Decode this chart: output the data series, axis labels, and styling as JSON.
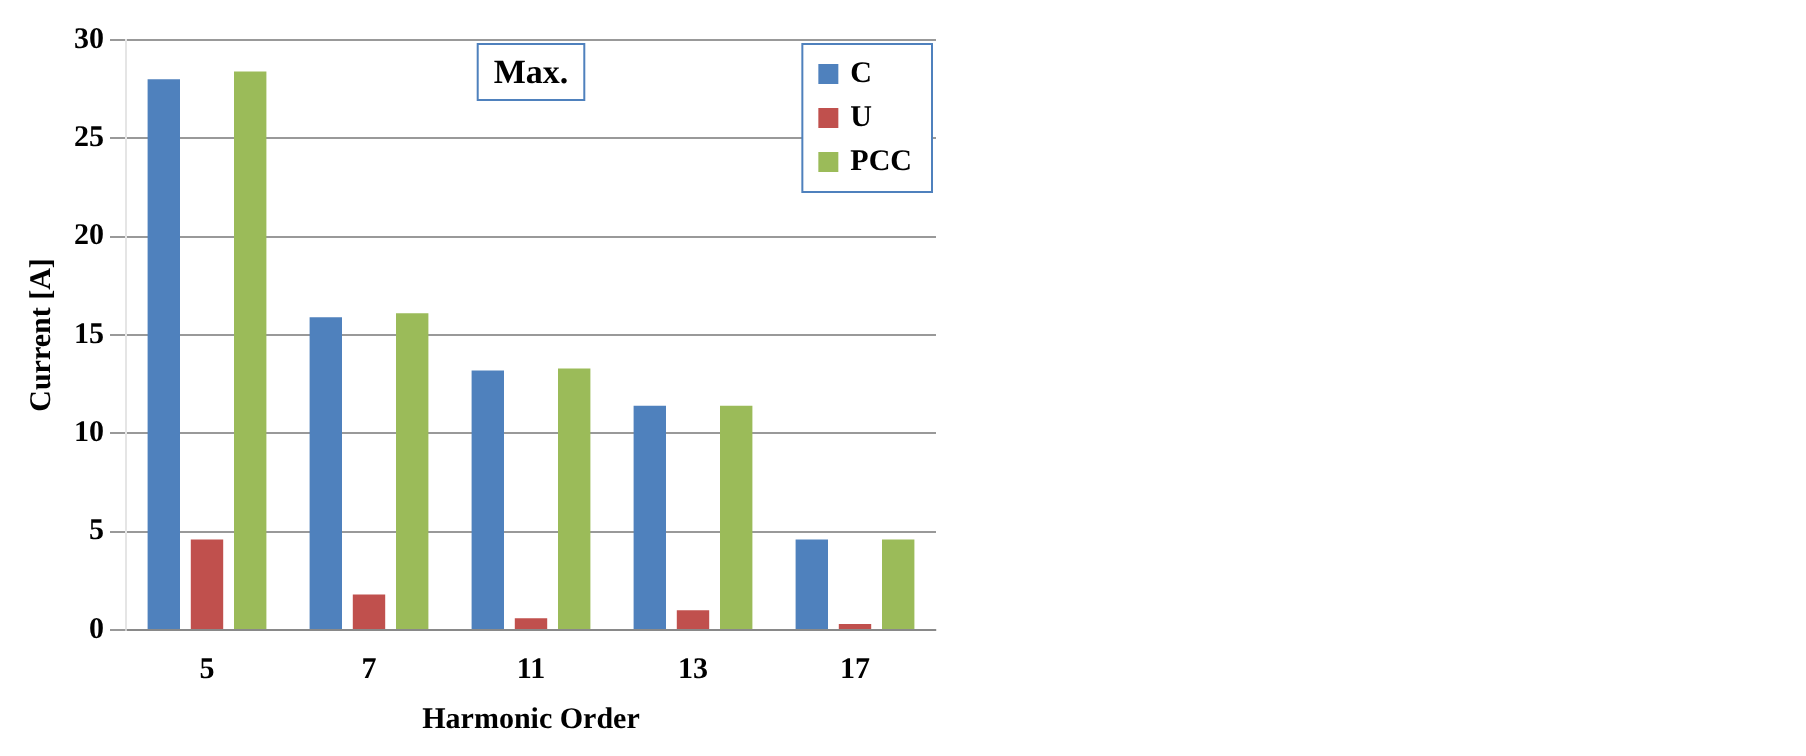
{
  "chart_data": {
    "type": "bar",
    "title": "Max.",
    "xlabel": "Harmonic Order",
    "ylabel": "Current [A]",
    "categories": [
      "5",
      "7",
      "11",
      "13",
      "17"
    ],
    "series": [
      {
        "name": "C",
        "color": "#4f81bd",
        "values": [
          28.0,
          15.9,
          13.2,
          11.4,
          4.6
        ]
      },
      {
        "name": "U",
        "color": "#c0504d",
        "values": [
          4.6,
          1.8,
          0.6,
          1.0,
          0.3
        ]
      },
      {
        "name": "PCC",
        "color": "#9bbb59",
        "values": [
          28.4,
          16.1,
          13.3,
          11.4,
          4.6
        ]
      }
    ],
    "ylim": [
      0,
      30
    ],
    "yticks": [
      0,
      5,
      10,
      15,
      20,
      25,
      30
    ],
    "grid": "y",
    "legend": "top right"
  }
}
